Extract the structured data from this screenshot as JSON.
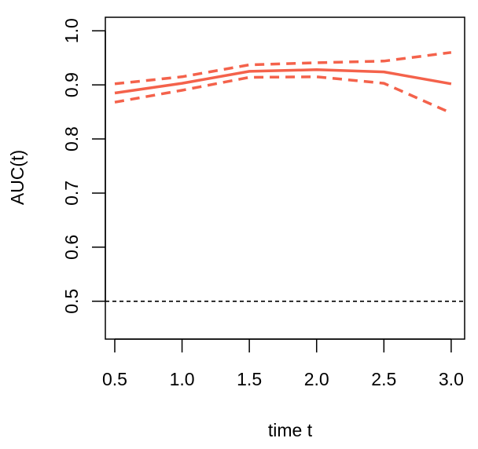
{
  "chart_data": {
    "type": "line",
    "title": "",
    "xlabel": "time t",
    "ylabel": "AUC(t)",
    "x": [
      0.5,
      1.0,
      1.5,
      2.0,
      2.5,
      3.0
    ],
    "x_tick_labels": [
      "0.5",
      "1.0",
      "1.5",
      "2.0",
      "2.5",
      "3.0"
    ],
    "y_tick_values": [
      0.5,
      0.6,
      0.7,
      0.8,
      0.9,
      1.0
    ],
    "y_tick_labels": [
      "0.5",
      "0.6",
      "0.7",
      "0.8",
      "0.9",
      "1.0"
    ],
    "xlim": [
      0.43,
      3.1
    ],
    "ylim": [
      0.43,
      1.025
    ],
    "grid": false,
    "legend": "none",
    "series": [
      {
        "role": "estimate",
        "style": "solid",
        "color": "#F4624B",
        "values": [
          0.885,
          0.903,
          0.925,
          0.928,
          0.924,
          0.902
        ]
      },
      {
        "role": "upper-bound",
        "style": "dashed",
        "color": "#F4624B",
        "values": [
          0.902,
          0.915,
          0.937,
          0.941,
          0.944,
          0.96
        ]
      },
      {
        "role": "lower-bound",
        "style": "dashed",
        "color": "#F4624B",
        "values": [
          0.868,
          0.89,
          0.914,
          0.915,
          0.903,
          0.848
        ]
      }
    ],
    "reference_line": {
      "y": 0.5,
      "style": "dashed",
      "color": "#000000"
    }
  }
}
